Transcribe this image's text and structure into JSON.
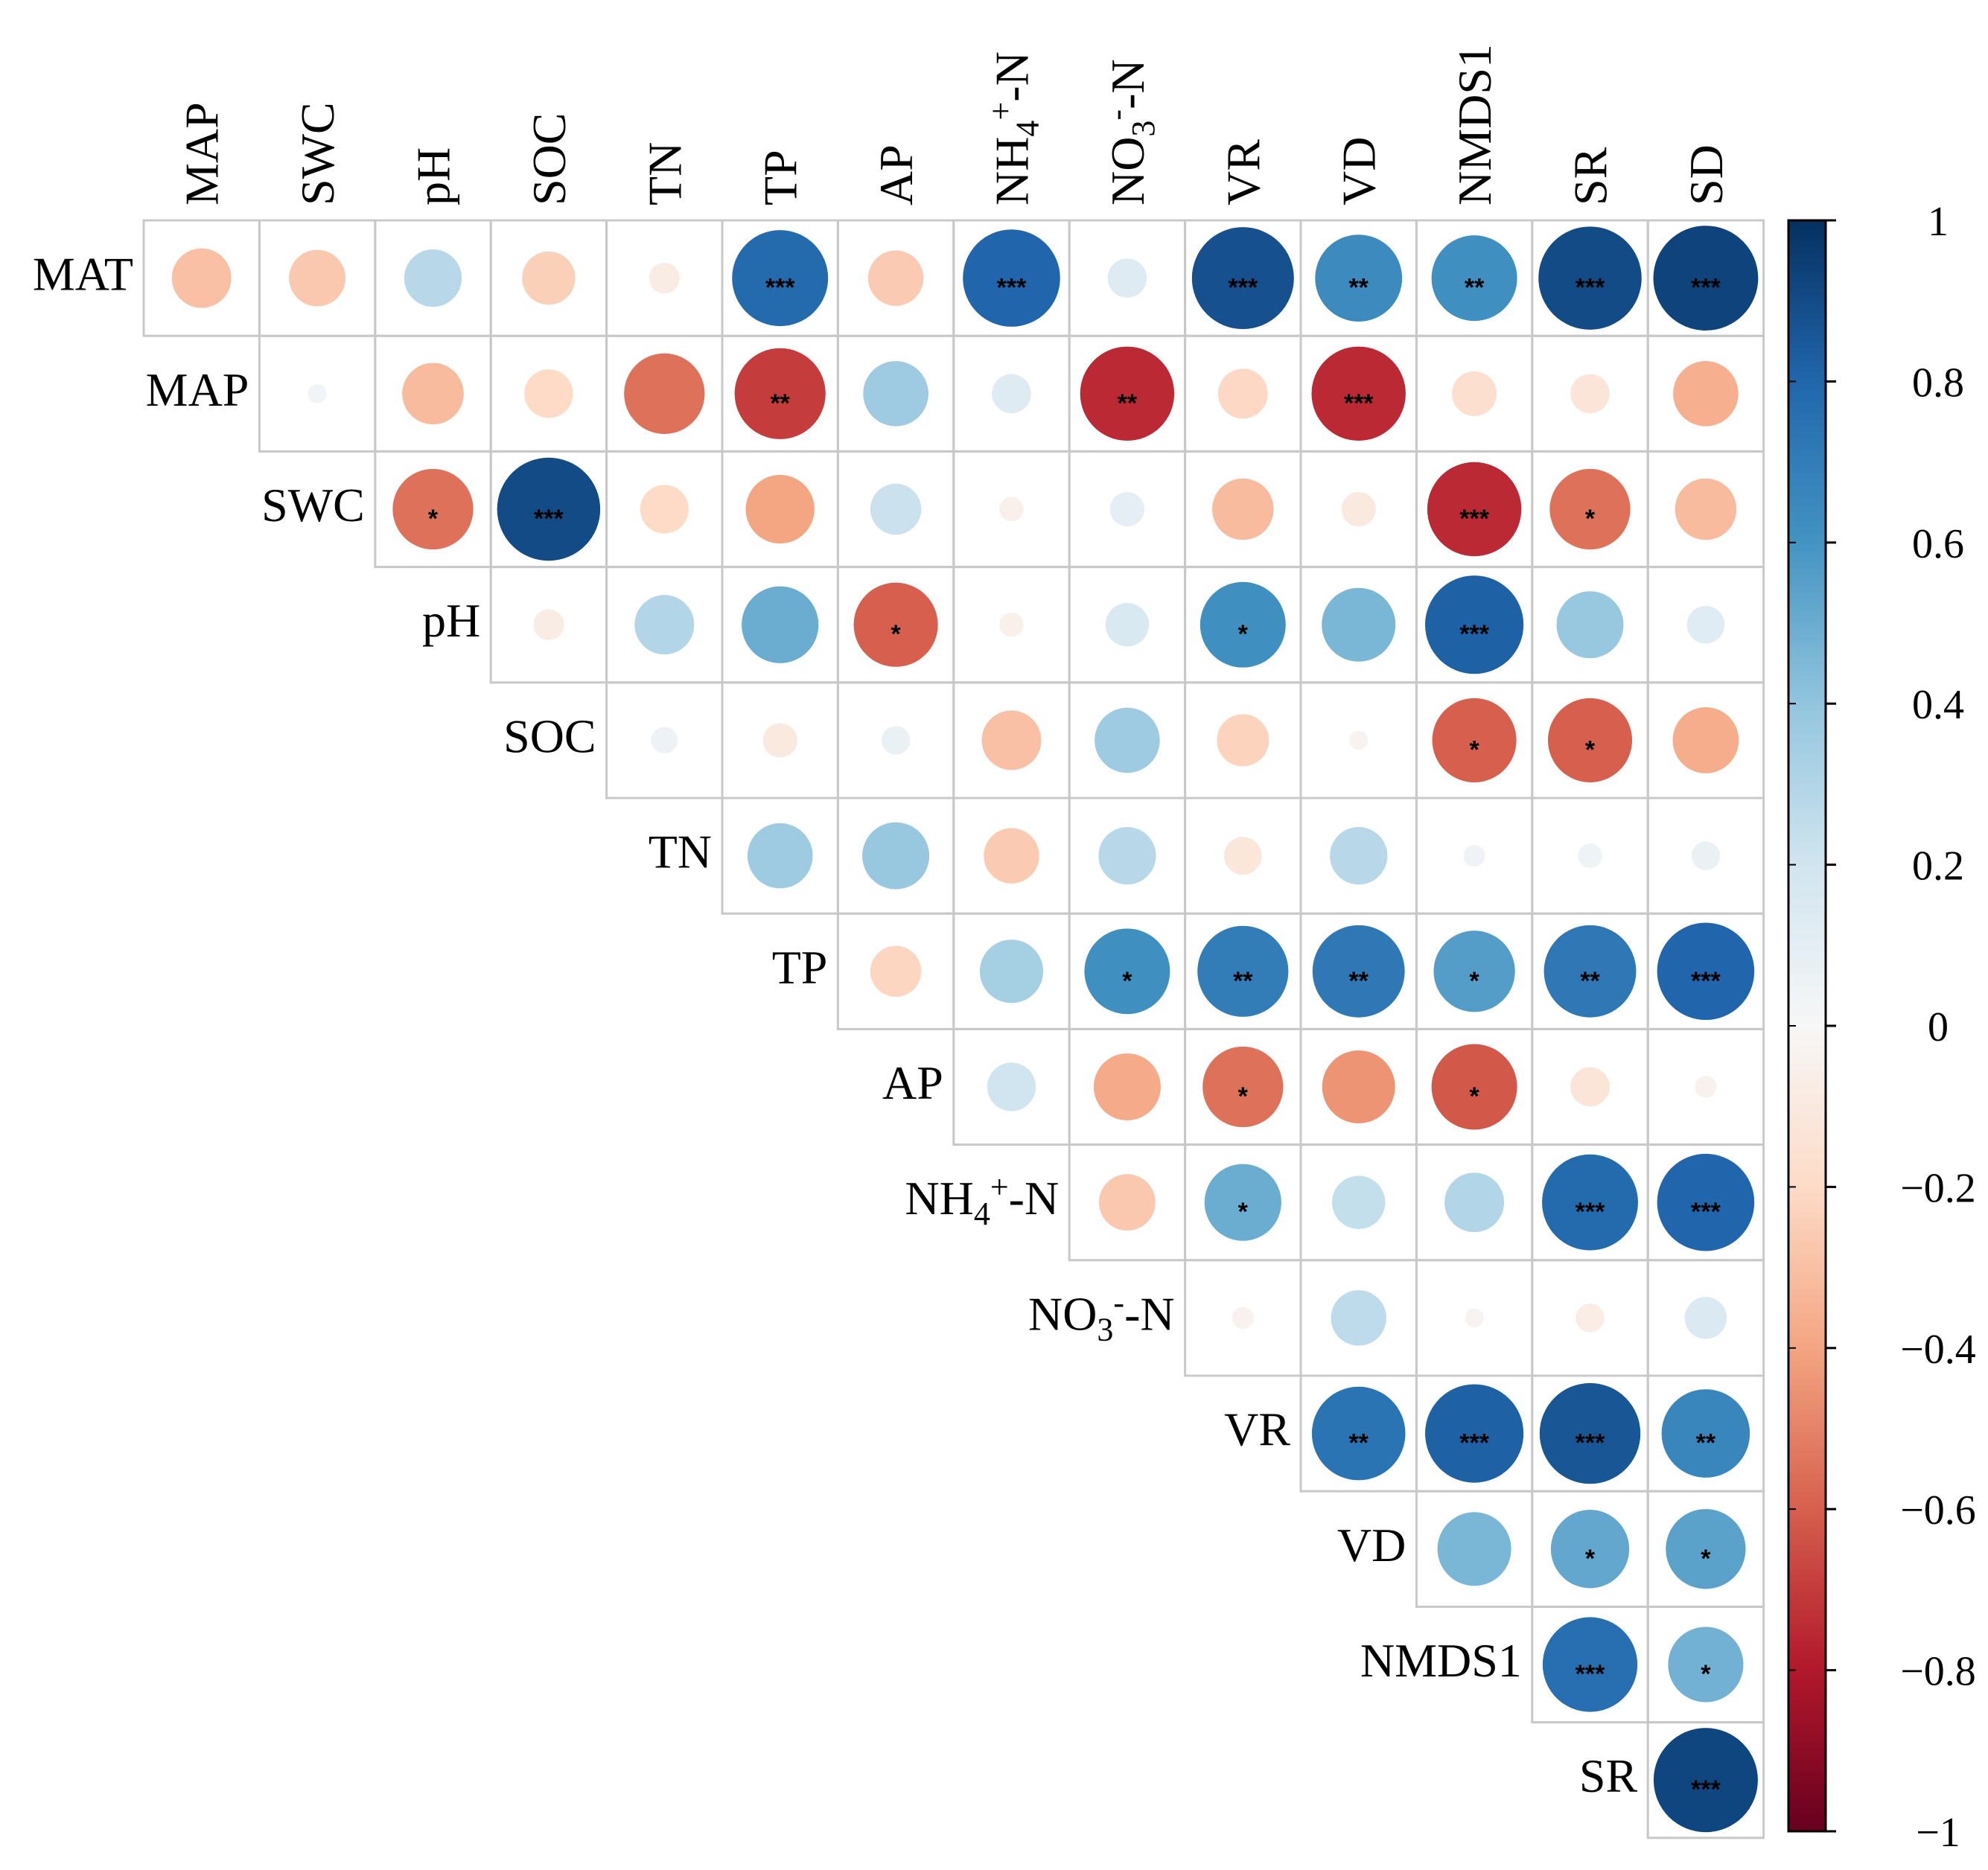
{
  "chart_data": {
    "type": "heatmap",
    "subtype": "correlation-circle-upper-triangle",
    "row_labels": [
      {
        "base": "MAT"
      },
      {
        "base": "MAP"
      },
      {
        "base": "SWC"
      },
      {
        "base": "pH"
      },
      {
        "base": "SOC"
      },
      {
        "base": "TN"
      },
      {
        "base": "TP"
      },
      {
        "base": "AP"
      },
      {
        "base": "NH",
        "sub": "4",
        "sup": "+",
        "tail": "-N"
      },
      {
        "base": "NO",
        "sub": "3",
        "sup": "-",
        "tail": "-N"
      },
      {
        "base": "VR"
      },
      {
        "base": "VD"
      },
      {
        "base": "NMDS1"
      },
      {
        "base": "SR"
      }
    ],
    "col_labels": [
      {
        "base": "MAP"
      },
      {
        "base": "SWC"
      },
      {
        "base": "pH"
      },
      {
        "base": "SOC"
      },
      {
        "base": "TN"
      },
      {
        "base": "TP"
      },
      {
        "base": "AP"
      },
      {
        "base": "NH",
        "sub": "4",
        "sup": "+",
        "tail": "-N"
      },
      {
        "base": "NO",
        "sub": "3",
        "sup": "-",
        "tail": "-N"
      },
      {
        "base": "VR"
      },
      {
        "base": "VD"
      },
      {
        "base": "NMDS1"
      },
      {
        "base": "SR"
      },
      {
        "base": "SD"
      }
    ],
    "values": [
      [
        -0.3,
        -0.27,
        0.28,
        -0.24,
        -0.08,
        0.78,
        -0.26,
        0.8,
        0.13,
        0.88,
        0.64,
        0.62,
        0.9,
        0.93
      ],
      [
        null,
        0.03,
        -0.32,
        -0.2,
        -0.55,
        -0.7,
        0.36,
        0.13,
        -0.75,
        -0.21,
        -0.75,
        -0.17,
        -0.13,
        -0.36
      ],
      [
        null,
        null,
        -0.55,
        0.9,
        -0.2,
        -0.4,
        0.22,
        -0.05,
        0.1,
        -0.32,
        -0.1,
        -0.75,
        -0.55,
        -0.32
      ],
      [
        null,
        null,
        null,
        -0.08,
        0.3,
        0.5,
        -0.6,
        -0.05,
        0.16,
        0.62,
        0.46,
        0.82,
        0.38,
        0.12
      ],
      [
        null,
        null,
        null,
        null,
        0.06,
        -0.1,
        0.07,
        -0.3,
        0.36,
        -0.23,
        -0.03,
        -0.6,
        -0.6,
        -0.37
      ],
      [
        null,
        null,
        null,
        null,
        null,
        0.36,
        0.38,
        -0.26,
        0.28,
        -0.12,
        0.28,
        0.04,
        0.05,
        0.07
      ],
      [
        null,
        null,
        null,
        null,
        null,
        null,
        -0.22,
        0.34,
        0.62,
        0.7,
        0.72,
        0.56,
        0.72,
        0.8
      ],
      [
        null,
        null,
        null,
        null,
        null,
        null,
        null,
        0.2,
        -0.38,
        -0.55,
        -0.45,
        -0.62,
        -0.13,
        -0.04
      ],
      [
        null,
        null,
        null,
        null,
        null,
        null,
        null,
        null,
        -0.27,
        0.5,
        0.24,
        0.3,
        0.78,
        0.8
      ],
      [
        null,
        null,
        null,
        null,
        null,
        null,
        null,
        null,
        null,
        -0.04,
        0.26,
        -0.03,
        -0.07,
        0.15
      ],
      [
        null,
        null,
        null,
        null,
        null,
        null,
        null,
        null,
        null,
        null,
        0.74,
        0.82,
        0.86,
        0.66
      ],
      [
        null,
        null,
        null,
        null,
        null,
        null,
        null,
        null,
        null,
        null,
        null,
        0.46,
        0.52,
        0.54
      ],
      [
        null,
        null,
        null,
        null,
        null,
        null,
        null,
        null,
        null,
        null,
        null,
        null,
        0.76,
        0.48
      ],
      [
        null,
        null,
        null,
        null,
        null,
        null,
        null,
        null,
        null,
        null,
        null,
        null,
        null,
        0.92
      ]
    ],
    "significance": [
      [
        "",
        "",
        "",
        "",
        "",
        "***",
        "",
        "***",
        "",
        "***",
        "**",
        "**",
        "***",
        "***"
      ],
      [
        "",
        "",
        "",
        "",
        "",
        "**",
        "",
        "",
        "**",
        "",
        "***",
        "",
        "",
        ""
      ],
      [
        "",
        "",
        "*",
        "***",
        "",
        "",
        "",
        "",
        "",
        "",
        "",
        "***",
        "*",
        ""
      ],
      [
        "",
        "",
        "",
        "",
        "",
        "",
        "*",
        "",
        "",
        "*",
        "",
        "***",
        "",
        ""
      ],
      [
        "",
        "",
        "",
        "",
        "",
        "",
        "",
        "",
        "",
        "",
        "",
        "*",
        "*",
        ""
      ],
      [
        "",
        "",
        "",
        "",
        "",
        "",
        "",
        "",
        "",
        "",
        "",
        "",
        "",
        ""
      ],
      [
        "",
        "",
        "",
        "",
        "",
        "",
        "",
        "",
        "*",
        "**",
        "**",
        "*",
        "**",
        "***"
      ],
      [
        "",
        "",
        "",
        "",
        "",
        "",
        "",
        "",
        "",
        "*",
        "",
        "*",
        "",
        ""
      ],
      [
        "",
        "",
        "",
        "",
        "",
        "",
        "",
        "",
        "",
        "*",
        "",
        "",
        "***",
        "***"
      ],
      [
        "",
        "",
        "",
        "",
        "",
        "",
        "",
        "",
        "",
        "",
        "",
        "",
        "",
        ""
      ],
      [
        "",
        "",
        "",
        "",
        "",
        "",
        "",
        "",
        "",
        "",
        "**",
        "***",
        "***",
        "**"
      ],
      [
        "",
        "",
        "",
        "",
        "",
        "",
        "",
        "",
        "",
        "",
        "",
        "",
        "*",
        "*"
      ],
      [
        "",
        "",
        "",
        "",
        "",
        "",
        "",
        "",
        "",
        "",
        "",
        "",
        "***",
        "*"
      ],
      [
        "",
        "",
        "",
        "",
        "",
        "",
        "",
        "",
        "",
        "",
        "",
        "",
        "",
        "***"
      ]
    ],
    "colorbar": {
      "range": [
        -1,
        1
      ],
      "ticks": [
        "1",
        "0.8",
        "0.6",
        "0.4",
        "0.2",
        "0",
        "−0.2",
        "−0.4",
        "−0.6",
        "−0.8",
        "−1"
      ],
      "tick_values": [
        1,
        0.8,
        0.6,
        0.4,
        0.2,
        0,
        -0.2,
        -0.4,
        -0.6,
        -0.8,
        -1
      ],
      "colormap": "RdBu",
      "stops": [
        {
          "v": -1.0,
          "color": "#67001f"
        },
        {
          "v": -0.8,
          "color": "#b2182b"
        },
        {
          "v": -0.6,
          "color": "#d6604d"
        },
        {
          "v": -0.4,
          "color": "#f4a582"
        },
        {
          "v": -0.2,
          "color": "#fddbc7"
        },
        {
          "v": 0.0,
          "color": "#f7f7f7"
        },
        {
          "v": 0.2,
          "color": "#d1e5f0"
        },
        {
          "v": 0.4,
          "color": "#92c5de"
        },
        {
          "v": 0.6,
          "color": "#4393c3"
        },
        {
          "v": 0.8,
          "color": "#2166ac"
        },
        {
          "v": 1.0,
          "color": "#053061"
        }
      ]
    },
    "grid_color": "#c8c8c8"
  }
}
